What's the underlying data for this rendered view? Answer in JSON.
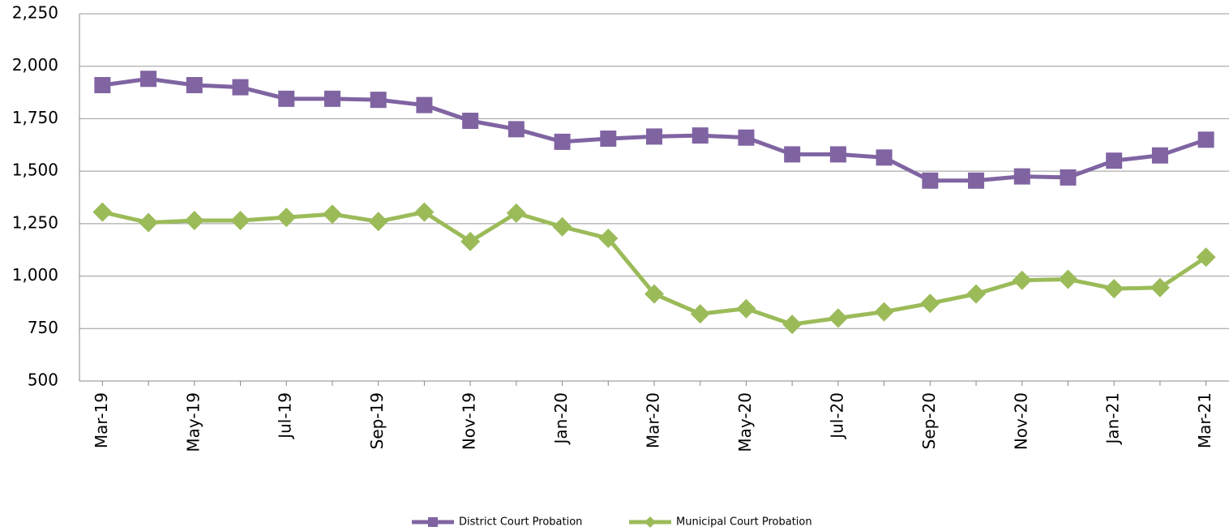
{
  "chart_data": {
    "type": "line",
    "categories": [
      "Mar-19",
      null,
      "May-19",
      null,
      "Jul-19",
      null,
      "Sep-19",
      null,
      "Nov-19",
      null,
      "Jan-20",
      null,
      "Mar-20",
      null,
      "May-20",
      null,
      "Jul-20",
      null,
      "Sep-20",
      null,
      "Nov-20",
      null,
      "Jan-21",
      null,
      "Mar-21"
    ],
    "series": [
      {
        "name": "District Court Probation",
        "color": "#8064a2",
        "marker": "square",
        "values": [
          1910,
          1940,
          1910,
          1900,
          1845,
          1845,
          1840,
          1815,
          1740,
          1700,
          1640,
          1655,
          1665,
          1670,
          1660,
          1580,
          1580,
          1565,
          1455,
          1455,
          1475,
          1470,
          1550,
          1575,
          1650
        ]
      },
      {
        "name": "Municipal Court Probation",
        "color": "#9bbb59",
        "marker": "diamond",
        "values": [
          1305,
          1255,
          1265,
          1265,
          1280,
          1295,
          1260,
          1305,
          1165,
          1300,
          1235,
          1180,
          915,
          820,
          845,
          770,
          800,
          830,
          870,
          915,
          980,
          985,
          940,
          945,
          1090
        ]
      }
    ],
    "ylim": [
      500,
      2250
    ],
    "yticks": [
      500,
      750,
      {
        "value": 1000,
        "label": "1,000"
      },
      {
        "value": 1250,
        "label": "1,250"
      },
      {
        "value": 1500,
        "label": "1,500"
      },
      {
        "value": 1750,
        "label": "1,750"
      },
      {
        "value": 2000,
        "label": "2,000"
      },
      {
        "value": 2250,
        "label": "2,250"
      }
    ],
    "grid": true,
    "legend": "bottom"
  }
}
